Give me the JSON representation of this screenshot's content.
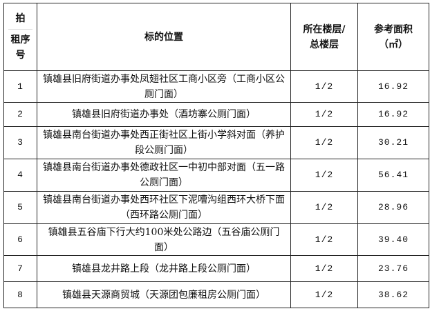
{
  "header": {
    "seq": [
      "拍",
      "租序",
      "号"
    ],
    "location": "标的位置",
    "floor": [
      "所在楼层/",
      "总楼层"
    ],
    "area": [
      "参考面积",
      "（㎡）"
    ]
  },
  "rows": [
    {
      "no": "1",
      "location": "镇雄县旧府街道办事处凤翅社区工商小区旁（工商小区公厕门面）",
      "floor": "1/2",
      "area": "16.92"
    },
    {
      "no": "2",
      "location": "镇雄县旧府街道办事处（酒坊寨公厕门面）",
      "floor": "1/2",
      "area": "16.92"
    },
    {
      "no": "3",
      "location": "镇雄县南台街道办事处西正街社区上街小学斜对面（养护段公厕门面）",
      "floor": "1/2",
      "area": "30.21"
    },
    {
      "no": "4",
      "location": "镇雄县南台街道办事处德政社区一中初中部对面（五一路公厕门面）",
      "floor": "1/2",
      "area": "56.41"
    },
    {
      "no": "5",
      "location": "镇雄县南台街道办事处西环社区下泥嘈沟组西环大桥下面（西环路公厕门面）",
      "floor": "1/2",
      "area": "28.96"
    },
    {
      "no": "6",
      "location": "镇雄县五谷庙下行大约100米处公路边（五谷庙公厕门面）",
      "floor": "1/2",
      "area": "39.40"
    },
    {
      "no": "7",
      "location": "镇雄县龙井路上段（龙井路上段公厕门面）",
      "floor": "1/2",
      "area": "23.76"
    },
    {
      "no": "8",
      "location": "镇雄县天源商贸城（天源团包廉租房公厕门面）",
      "floor": "1/2",
      "area": "38.62"
    }
  ]
}
